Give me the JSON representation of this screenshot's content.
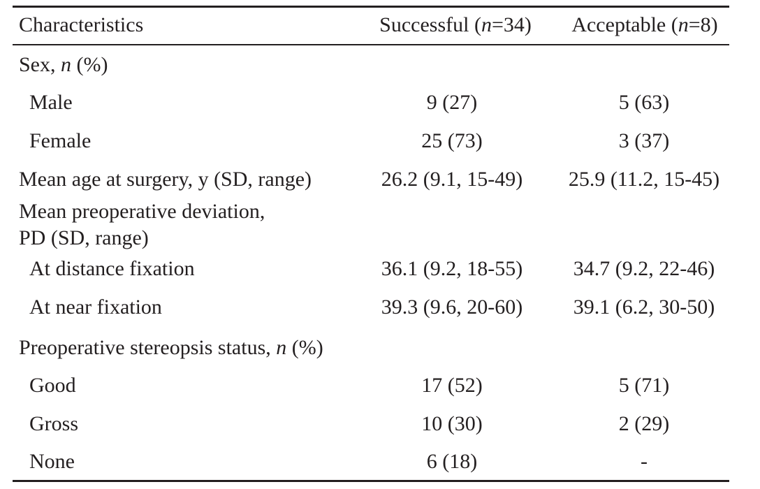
{
  "header": {
    "characteristics": "Characteristics",
    "successful_prefix": "Successful (",
    "successful_n": "n",
    "successful_suffix": "=34)",
    "acceptable_prefix": "Acceptable (",
    "acceptable_n": "n",
    "acceptable_suffix": "=8)"
  },
  "sex": {
    "label_prefix": "Sex, ",
    "label_n": "n",
    "label_suffix": " (%)",
    "male": {
      "label": "Male",
      "successful": "9 (27)",
      "acceptable": "5 (63)"
    },
    "female": {
      "label": "Female",
      "successful": "25 (73)",
      "acceptable": "3 (37)"
    }
  },
  "age": {
    "label": "Mean age at surgery, y (SD, range)",
    "successful": "26.2 (9.1, 15-49)",
    "acceptable": "25.9 (11.2, 15-45)"
  },
  "deviation": {
    "label_line1": "Mean preoperative deviation,",
    "label_line2": "PD (SD, range)",
    "distance": {
      "label": "At distance fixation",
      "successful": "36.1 (9.2, 18-55)",
      "acceptable": "34.7 (9.2, 22-46)"
    },
    "near": {
      "label": "At near fixation",
      "successful": "39.3 (9.6, 20-60)",
      "acceptable": "39.1 (6.2, 30-50)"
    }
  },
  "stereopsis": {
    "label_prefix": "Preoperative stereopsis status, ",
    "label_n": "n",
    "label_suffix": " (%)",
    "good": {
      "label": "Good",
      "successful": "17 (52)",
      "acceptable": "5 (71)"
    },
    "gross": {
      "label": "Gross",
      "successful": "10 (30)",
      "acceptable": "2 (29)"
    },
    "none": {
      "label": "None",
      "successful": "6 (18)",
      "acceptable": "-"
    }
  }
}
